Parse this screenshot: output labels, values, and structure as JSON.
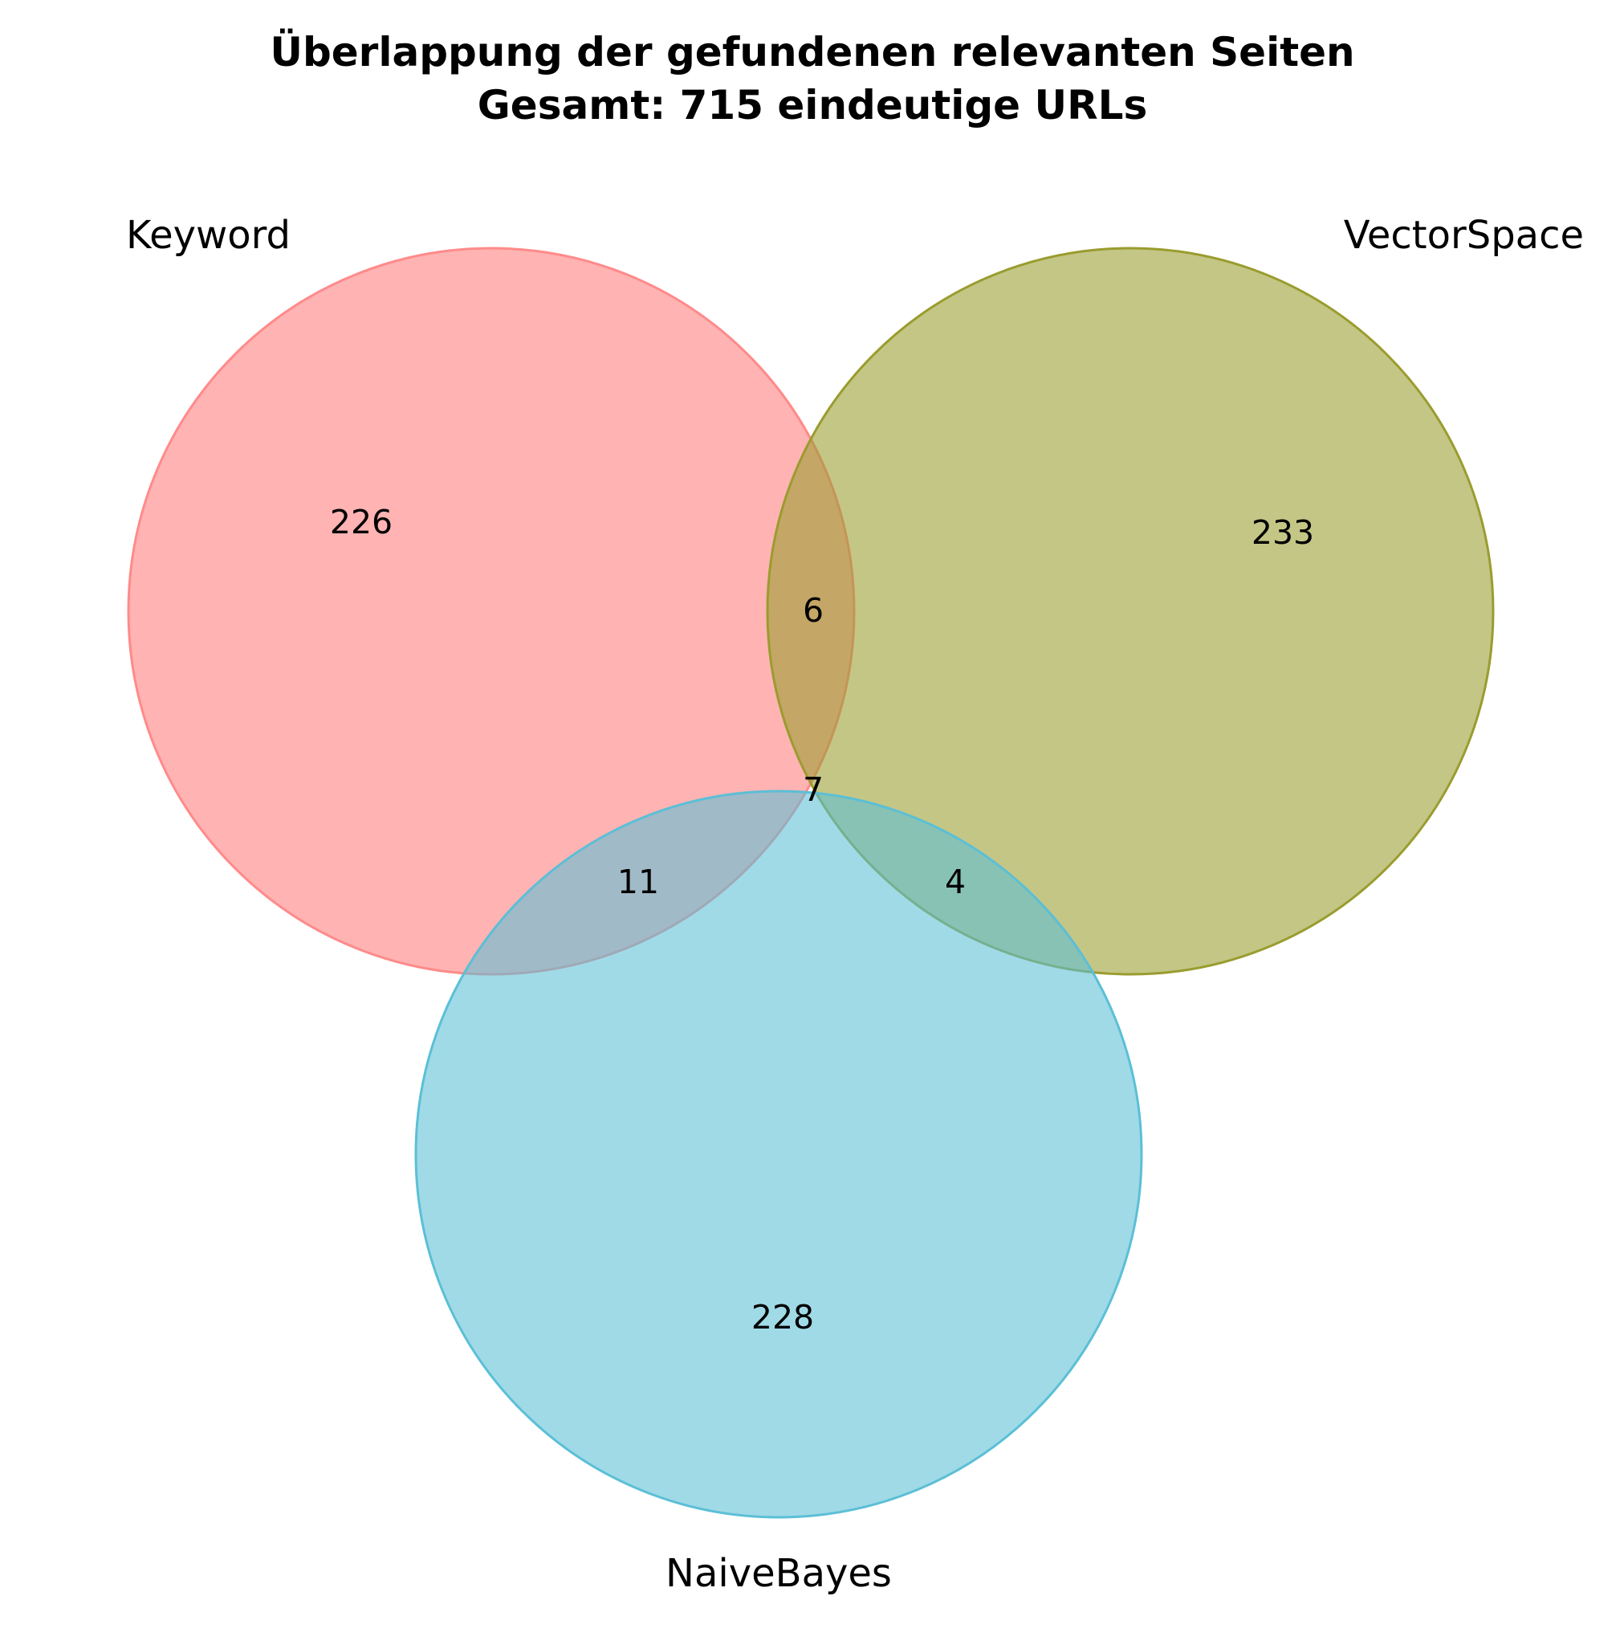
{
  "title": {
    "line1": "Überlappung der gefundenen relevanten Seiten",
    "line2": "Gesamt: 715 eindeutige URLs"
  },
  "sets": {
    "keyword": {
      "label": "Keyword",
      "color": "#ff8a8a"
    },
    "vectorspace": {
      "label": "VectorSpace",
      "color": "#9a9c2e"
    },
    "naivebayes": {
      "label": "NaiveBayes",
      "color": "#5bbfd6"
    }
  },
  "regions": {
    "keyword_only": "226",
    "vectorspace_only": "233",
    "naivebayes_only": "228",
    "keyword_vectorspace": "6",
    "keyword_naivebayes": "11",
    "vectorspace_naivebayes": "4",
    "all_three": "7"
  }
}
